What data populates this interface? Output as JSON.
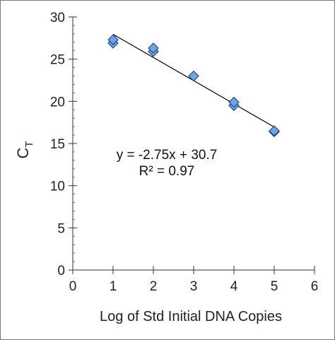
{
  "chart_data": {
    "type": "scatter",
    "title": "",
    "xlabel": "Log of Std Initial DNA Copies",
    "ylabel": "C",
    "ylabel_subscript": "T",
    "xlim": [
      0,
      6
    ],
    "ylim": [
      0,
      30
    ],
    "x_ticks": [
      "0",
      "1",
      "2",
      "3",
      "4",
      "5",
      "6"
    ],
    "y_ticks": [
      "0",
      "5",
      "10",
      "15",
      "20",
      "25",
      "30"
    ],
    "grid": false,
    "legend": "none",
    "marker_color": "#6fa3e8",
    "series": [
      {
        "points": [
          {
            "x": 1,
            "y": 26.9
          },
          {
            "x": 1,
            "y": 27.3
          },
          {
            "x": 2,
            "y": 25.9
          },
          {
            "x": 2,
            "y": 26.3
          },
          {
            "x": 3,
            "y": 23.0
          },
          {
            "x": 4,
            "y": 19.5
          },
          {
            "x": 4,
            "y": 19.9
          },
          {
            "x": 5,
            "y": 16.4
          },
          {
            "x": 5,
            "y": 16.5
          }
        ]
      }
    ],
    "trendline": {
      "slope": -2.75,
      "intercept": 30.7,
      "x_range": [
        1,
        5
      ]
    },
    "annotations": [
      "y = -2.75x + 30.7",
      "R² = 0.97"
    ]
  }
}
